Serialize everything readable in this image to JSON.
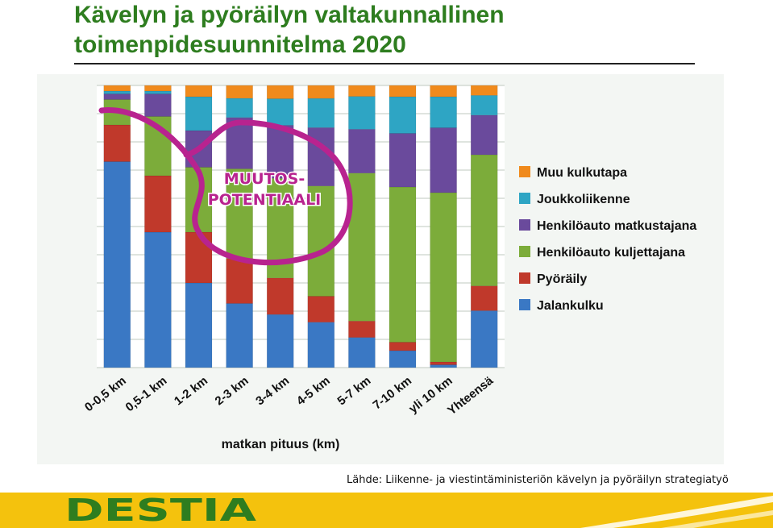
{
  "slide": {
    "title": "Kävelyn ja pyöräilyn valtakunnallinen\ntoimenpidesuunnitelma 2020",
    "source": "Lähde: Liikenne- ja viestintäministeriön kävelyn ja pyöräilyn strategiatyö",
    "logo_text": "DESTIA"
  },
  "chart_data": {
    "type": "bar",
    "stacked": true,
    "normalized": true,
    "title": "",
    "xlabel": "matkan pituus (km)",
    "ylabel": "",
    "ylim": [
      0,
      100
    ],
    "grid": true,
    "legend_position": "right",
    "categories": [
      "0-0,5 km",
      "0,5-1 km",
      "1-2 km",
      "2-3 km",
      "3-4 km",
      "4-5 km",
      "5-7 km",
      "7-10 km",
      "yli 10 km",
      "Yhteensä"
    ],
    "series": [
      {
        "name": "Jalankulku",
        "color": "#3a78c4",
        "values": [
          73,
          48,
          30,
          20,
          16,
          14,
          11,
          6,
          1,
          23
        ]
      },
      {
        "name": "Pyöräily",
        "color": "#c0392b",
        "values": [
          13,
          20,
          18,
          14,
          11,
          8,
          6,
          3,
          1,
          10
        ]
      },
      {
        "name": "Henkilöauto kuljettajana",
        "color": "#7cac3a",
        "values": [
          9,
          21,
          23,
          28,
          30,
          34,
          54,
          55,
          60,
          53
        ]
      },
      {
        "name": "Henkilöauto matkustajana",
        "color": "#6a4a9c",
        "values": [
          2,
          8,
          13,
          16,
          16,
          18,
          16,
          19,
          23,
          16
        ]
      },
      {
        "name": "Joukkoliikenne",
        "color": "#2ea5c4",
        "values": [
          1,
          1,
          12,
          6,
          8,
          9,
          12,
          13,
          11,
          8
        ]
      },
      {
        "name": "Muu kulkutapa",
        "color": "#f08a1c",
        "values": [
          2,
          2,
          4,
          4,
          4,
          4,
          4,
          4,
          4,
          4
        ]
      }
    ],
    "annotation": "MUUTOS-\nPOTENTIAALI",
    "annotation_color": "#b8238f"
  }
}
